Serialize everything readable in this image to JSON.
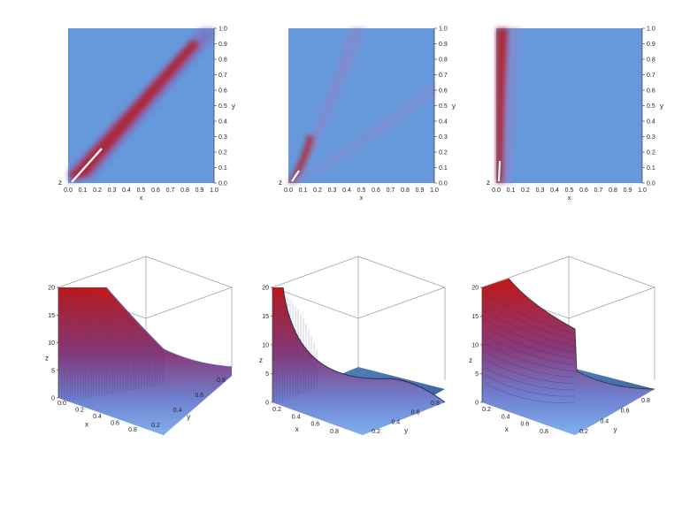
{
  "chart_data": [
    {
      "type": "heatmap",
      "view": "top",
      "xlabel": "x",
      "ylabel": "y",
      "zlabel": "z",
      "xlim": [
        0,
        1
      ],
      "ylim": [
        0,
        1
      ],
      "xticks": [
        "0.0",
        "0.1",
        "0.2",
        "0.3",
        "0.4",
        "0.5",
        "0.6",
        "0.7",
        "0.8",
        "0.9",
        "1.0"
      ],
      "yticks": [
        "0.0",
        "0.1",
        "0.2",
        "0.3",
        "0.4",
        "0.5",
        "0.6",
        "0.7",
        "0.8",
        "0.9",
        "1.0"
      ],
      "colormap": [
        "#6b9fe0",
        "#c21f1f"
      ],
      "ridge": "diagonal y = x"
    },
    {
      "type": "heatmap",
      "view": "top",
      "xlabel": "x",
      "ylabel": "y",
      "zlabel": "z",
      "xlim": [
        0,
        1
      ],
      "ylim": [
        0,
        1
      ],
      "xticks": [
        "0.0",
        "0.1",
        "0.2",
        "0.3",
        "0.4",
        "0.5",
        "0.6",
        "0.7",
        "0.8",
        "0.9",
        "1.0"
      ],
      "yticks": [
        "0.0",
        "0.1",
        "0.2",
        "0.3",
        "0.4",
        "0.5",
        "0.6",
        "0.7",
        "0.8",
        "0.9",
        "1.0"
      ],
      "colormap": [
        "#6b9fe0",
        "#c21f1f"
      ],
      "ridge": "curved from origin"
    },
    {
      "type": "heatmap",
      "view": "top",
      "xlabel": "x",
      "ylabel": "y",
      "zlabel": "z",
      "xlim": [
        0,
        1
      ],
      "ylim": [
        0,
        1
      ],
      "xticks": [
        "0.0",
        "0.1",
        "0.2",
        "0.3",
        "0.4",
        "0.5",
        "0.6",
        "0.7",
        "0.8",
        "0.9",
        "1.0"
      ],
      "yticks": [
        "0.0",
        "0.1",
        "0.2",
        "0.3",
        "0.4",
        "0.5",
        "0.6",
        "0.7",
        "0.8",
        "0.9",
        "1.0"
      ],
      "colormap": [
        "#6b9fe0",
        "#c21f1f"
      ],
      "ridge": "near x = 0"
    },
    {
      "type": "surface3d",
      "xlabel": "x",
      "ylabel": "y",
      "zlabel": "z",
      "zlim": [
        0,
        20
      ],
      "zticks": [
        "0",
        "5",
        "10",
        "15",
        "20"
      ],
      "xticks": [
        "0.0",
        "0.2",
        "0.4",
        "0.6",
        "0.8"
      ],
      "yticks": [
        "0.2",
        "0.4",
        "0.6",
        "0.8"
      ],
      "colormap": [
        "#6b9fe0",
        "#c21f1f"
      ]
    },
    {
      "type": "surface3d",
      "xlabel": "x",
      "ylabel": "y",
      "zlabel": "z",
      "zlim": [
        0,
        20
      ],
      "zticks": [
        "0",
        "5",
        "10",
        "15",
        "20"
      ],
      "xticks": [
        "0.2",
        "0.4",
        "0.6",
        "0.8"
      ],
      "yticks": [
        "0.2",
        "0.4",
        "0.6",
        "0.8"
      ],
      "colormap": [
        "#6b9fe0",
        "#c21f1f"
      ]
    },
    {
      "type": "surface3d",
      "xlabel": "x",
      "ylabel": "y",
      "zlabel": "z",
      "zlim": [
        0,
        20
      ],
      "zticks": [
        "0",
        "5",
        "10",
        "15",
        "20"
      ],
      "xticks": [
        "0.2",
        "0.4",
        "0.6",
        "0.8"
      ],
      "yticks": [
        "0.2",
        "0.4",
        "0.6",
        "0.8"
      ],
      "colormap": [
        "#6b9fe0",
        "#c21f1f"
      ]
    }
  ]
}
